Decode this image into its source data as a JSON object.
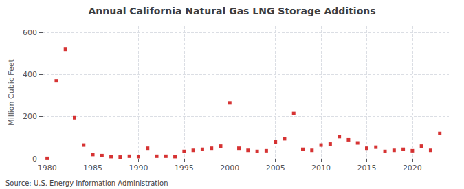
{
  "chart_data": {
    "type": "scatter",
    "title": "Annual California Natural Gas LNG Storage Additions",
    "ylabel": "Million Cubic Feet",
    "annotations": [
      "Source: U.S. Energy Information Administration"
    ],
    "x": [
      1980,
      1981,
      1982,
      1983,
      1984,
      1985,
      1986,
      1987,
      1988,
      1989,
      1990,
      1991,
      1992,
      1993,
      1994,
      1995,
      1996,
      1997,
      1998,
      1999,
      2000,
      2001,
      2002,
      2003,
      2004,
      2005,
      2006,
      2007,
      2008,
      2009,
      2010,
      2011,
      2012,
      2013,
      2014,
      2015,
      2016,
      2017,
      2018,
      2019,
      2020,
      2021,
      2022,
      2023
    ],
    "values": [
      2,
      370,
      520,
      195,
      65,
      20,
      15,
      10,
      8,
      12,
      10,
      50,
      12,
      12,
      10,
      35,
      40,
      45,
      50,
      60,
      265,
      50,
      40,
      35,
      38,
      80,
      95,
      215,
      45,
      40,
      65,
      70,
      105,
      90,
      75,
      50,
      55,
      35,
      40,
      45,
      38,
      60,
      40,
      120
    ],
    "color": "#cc0000",
    "marker": "square",
    "xlim": [
      1979.5,
      2024
    ],
    "xticks": [
      1980,
      1985,
      1990,
      1995,
      2000,
      2005,
      2010,
      2015,
      2020
    ],
    "ylim": [
      0,
      630
    ],
    "yticks": [
      0,
      200,
      400,
      600
    ],
    "grid": true
  }
}
